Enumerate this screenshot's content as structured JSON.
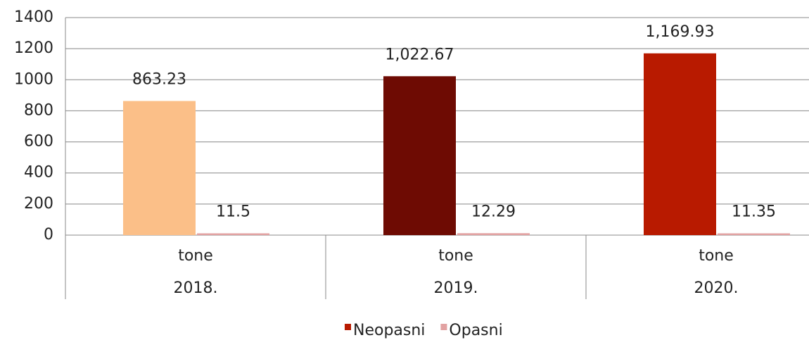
{
  "chart_data": {
    "type": "bar",
    "categories": [
      "2018.",
      "2019.",
      "2020."
    ],
    "subcategories": [
      "tone",
      "tone",
      "tone"
    ],
    "series": [
      {
        "name": "Neopasni",
        "color": "#b81a00",
        "colors": [
          "#fbbf88",
          "#6e0b03",
          "#b81a00"
        ],
        "values": [
          863.23,
          1022.67,
          1169.93
        ],
        "value_labels": [
          "863.23",
          "1,022.67",
          "1,169.93"
        ]
      },
      {
        "name": "Opasni",
        "color": "#e2a2a2",
        "values": [
          11.5,
          12.29,
          11.35
        ]
      }
    ],
    "ylim": [
      0,
      1400
    ],
    "yticks": [
      0,
      200,
      400,
      600,
      800,
      1000,
      1200,
      1400
    ],
    "grid": true,
    "legend": "bottom"
  }
}
